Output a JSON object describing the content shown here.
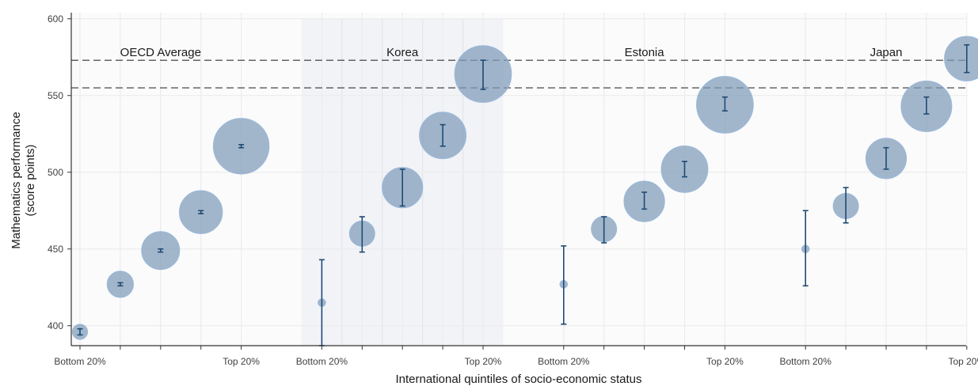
{
  "chart_data": {
    "type": "scatter",
    "xlabel": "International quintiles of socio-economic status",
    "ylabel_lines": [
      "Mathematics performance",
      "(score points)"
    ],
    "ylim": [
      387,
      604
    ],
    "yticks": [
      400,
      450,
      500,
      550,
      600
    ],
    "reference_lines": [
      {
        "name": "Dashed line 1",
        "y": 573
      },
      {
        "name": "Dashed line 2",
        "y": 555
      }
    ],
    "quintile_labels": [
      "Bottom 20%",
      "",
      "",
      "",
      "Top 20%"
    ],
    "groups": [
      {
        "name": "OECD Average",
        "highlighted": false,
        "points": [
          {
            "y": 396,
            "low": 394,
            "high": 398,
            "size": 0.3
          },
          {
            "y": 427,
            "low": 426,
            "high": 428,
            "size": 0.52
          },
          {
            "y": 449,
            "low": 448,
            "high": 450,
            "size": 0.75
          },
          {
            "y": 474,
            "low": 473,
            "high": 475,
            "size": 0.85
          },
          {
            "y": 517,
            "low": 516,
            "high": 518,
            "size": 1.1
          }
        ]
      },
      {
        "name": "Korea",
        "highlighted": true,
        "points": [
          {
            "y": 415,
            "low": 387,
            "high": 443,
            "size": 0.15
          },
          {
            "y": 460,
            "low": 448,
            "high": 471,
            "size": 0.5
          },
          {
            "y": 490,
            "low": 478,
            "high": 502,
            "size": 0.8
          },
          {
            "y": 524,
            "low": 517,
            "high": 531,
            "size": 0.92
          },
          {
            "y": 564,
            "low": 554,
            "high": 573,
            "size": 1.12
          }
        ]
      },
      {
        "name": "Estonia",
        "highlighted": false,
        "points": [
          {
            "y": 427,
            "low": 401,
            "high": 452,
            "size": 0.15
          },
          {
            "y": 463,
            "low": 454,
            "high": 471,
            "size": 0.5
          },
          {
            "y": 481,
            "low": 476,
            "high": 487,
            "size": 0.8
          },
          {
            "y": 502,
            "low": 497,
            "high": 507,
            "size": 0.92
          },
          {
            "y": 544,
            "low": 540,
            "high": 549,
            "size": 1.12
          }
        ]
      },
      {
        "name": "Japan",
        "highlighted": false,
        "points": [
          {
            "y": 450,
            "low": 426,
            "high": 475,
            "size": 0.15
          },
          {
            "y": 478,
            "low": 467,
            "high": 490,
            "size": 0.5
          },
          {
            "y": 509,
            "low": 502,
            "high": 516,
            "size": 0.8
          },
          {
            "y": 543,
            "low": 538,
            "high": 549,
            "size": 1.0
          },
          {
            "y": 574,
            "low": 565,
            "high": 583,
            "size": 0.88
          }
        ]
      }
    ],
    "colors": {
      "bubble_fill": "#7f9bb8",
      "bubble_stroke": "#9ab8dc",
      "error_bar": "#1f4a73",
      "grid": "#ececec",
      "plot_bg": "#fbfbfb",
      "highlight_bg": "#f1f3f6",
      "highlight_line": "#e0e3e8",
      "axis": "#333333",
      "ref_line": "#333333"
    },
    "grid": true
  }
}
